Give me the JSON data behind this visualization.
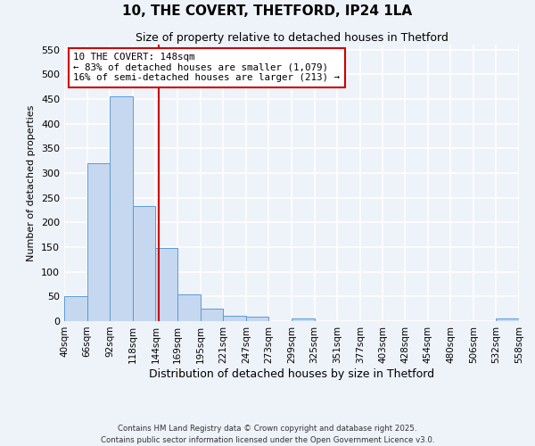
{
  "title": "10, THE COVERT, THETFORD, IP24 1LA",
  "subtitle": "Size of property relative to detached houses in Thetford",
  "xlabel": "Distribution of detached houses by size in Thetford",
  "ylabel": "Number of detached properties",
  "bar_edges": [
    40,
    66,
    92,
    118,
    144,
    169,
    195,
    221,
    247,
    273,
    299,
    325,
    351,
    377,
    403,
    428,
    454,
    480,
    506,
    532,
    558
  ],
  "bar_heights": [
    50,
    320,
    455,
    233,
    149,
    54,
    25,
    10,
    9,
    0,
    5,
    0,
    0,
    0,
    0,
    0,
    0,
    0,
    0,
    5
  ],
  "bar_color": "#c5d8f0",
  "bar_edgecolor": "#5b9bd5",
  "vline_x": 148,
  "vline_color": "#cc0000",
  "annotation_title": "10 THE COVERT: 148sqm",
  "annotation_line1": "← 83% of detached houses are smaller (1,079)",
  "annotation_line2": "16% of semi-detached houses are larger (213) →",
  "annotation_box_facecolor": "white",
  "annotation_box_edgecolor": "#cc0000",
  "ylim": [
    0,
    560
  ],
  "yticks": [
    0,
    50,
    100,
    150,
    200,
    250,
    300,
    350,
    400,
    450,
    500,
    550
  ],
  "tick_labels": [
    "40sqm",
    "66sqm",
    "92sqm",
    "118sqm",
    "144sqm",
    "169sqm",
    "195sqm",
    "221sqm",
    "247sqm",
    "273sqm",
    "299sqm",
    "325sqm",
    "351sqm",
    "377sqm",
    "403sqm",
    "428sqm",
    "454sqm",
    "480sqm",
    "506sqm",
    "532sqm",
    "558sqm"
  ],
  "footer1": "Contains HM Land Registry data © Crown copyright and database right 2025.",
  "footer2": "Contains public sector information licensed under the Open Government Licence v3.0.",
  "background_color": "#eef2f9",
  "grid_color": "white",
  "figsize": [
    6.0,
    5.0
  ],
  "dpi": 100
}
